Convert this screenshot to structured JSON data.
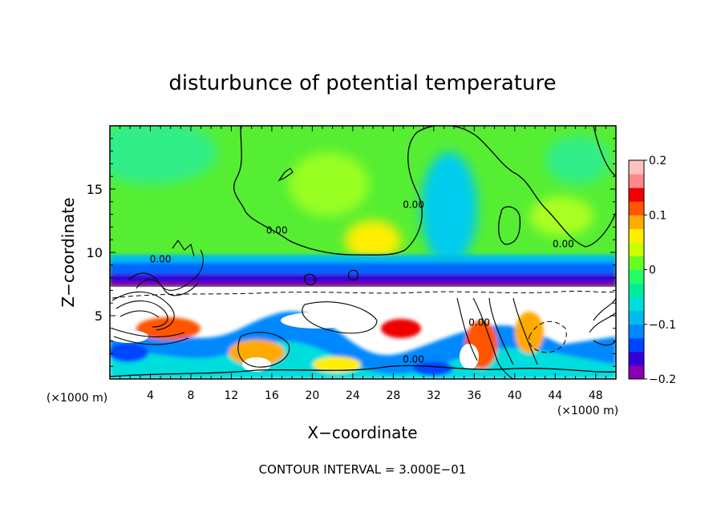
{
  "chart_data": {
    "type": "heatmap",
    "title": "disturbunce of potential temperature",
    "xlabel": "X−coordinate",
    "ylabel": "Z−coordinate",
    "x_unit": "(×1000 m)",
    "z_unit": "(×1000 m)",
    "xlim": [
      0,
      50
    ],
    "zlim": [
      0,
      20
    ],
    "x_ticks": [
      "4",
      "8",
      "12",
      "16",
      "20",
      "24",
      "28",
      "32",
      "36",
      "40",
      "44",
      "48"
    ],
    "z_ticks": [
      "5",
      "10",
      "15"
    ],
    "colorbar": {
      "range": [
        -0.2,
        0.2
      ],
      "labels": [
        "0.2",
        "0.1",
        "0",
        "−0.1",
        "−0.2"
      ],
      "colors": [
        "#8a00b0",
        "#3300d8",
        "#0044ff",
        "#0088ff",
        "#00bbee",
        "#00dddd",
        "#00ee99",
        "#22ff66",
        "#66ff22",
        "#ccff00",
        "#ffee00",
        "#ffaa00",
        "#ff5500",
        "#ee0000",
        "#ff8888",
        "#ffc0c0"
      ]
    },
    "contour_labels": [
      {
        "text": "0.00",
        "x": 16.5,
        "z": 11.5
      },
      {
        "text": "0.00",
        "x": 30.0,
        "z": 13.5
      },
      {
        "text": "0.00",
        "x": 44.8,
        "z": 10.4
      },
      {
        "text": "0.00",
        "x": 30.0,
        "z": 1.3
      },
      {
        "text": "0.00",
        "x": 36.5,
        "z": 4.2
      },
      {
        "text": "0.00",
        "x": 5.0,
        "z": 9.2
      }
    ],
    "contour_interval_label": "CONTOUR INTERVAL = 3.000E−01"
  }
}
